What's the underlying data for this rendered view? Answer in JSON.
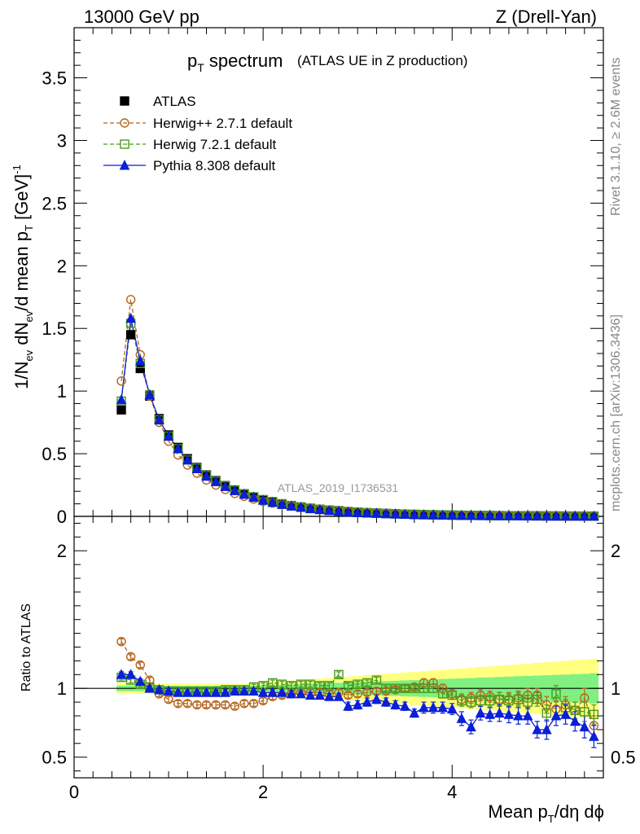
{
  "header": {
    "left": "13000 GeV pp",
    "right": "Z (Drell-Yan)"
  },
  "title": {
    "main": "p",
    "main_sub": "T",
    "main_rest": " spectrum",
    "subtitle": "(ATLAS UE in Z production)"
  },
  "side_labels": {
    "rivet": "Rivet 3.1.10, ≥ 2.6M events",
    "mcplots": "mcplots.cern.ch [arXiv:1306.3436]"
  },
  "watermark": "ATLAS_2019_I1736531",
  "axes": {
    "top_ylabel": "1/N_ev dN_ev/d mean p_T [GeV]^-1",
    "bottom_ylabel": "Ratio to ATLAS",
    "xlabel": "Mean p_T/dη dϕ"
  },
  "colors": {
    "atlas": "#000000",
    "herwigpp": "#b5651d",
    "herwig7": "#4a9a1c",
    "pythia": "#0a1fd6",
    "band_outer": "#ffff80",
    "band_inner": "#80f080"
  },
  "chart_data": [
    {
      "type": "scatter",
      "panel": "main",
      "xlim": [
        0,
        5.6
      ],
      "ylim": [
        0,
        3.9
      ],
      "x_ticks": [
        "0",
        "2",
        "4"
      ],
      "y_ticks": [
        "0",
        "0.5",
        "1",
        "1.5",
        "2",
        "2.5",
        "3",
        "3.5"
      ],
      "legend_placement": "top-left",
      "x": [
        0.5,
        0.6,
        0.7,
        0.8,
        0.9,
        1.0,
        1.1,
        1.2,
        1.3,
        1.4,
        1.5,
        1.6,
        1.7,
        1.8,
        1.9,
        2.0,
        2.1,
        2.2,
        2.3,
        2.4,
        2.5,
        2.6,
        2.7,
        2.8,
        2.9,
        3.0,
        3.1,
        3.2,
        3.3,
        3.4,
        3.5,
        3.6,
        3.7,
        3.8,
        3.9,
        4.0,
        4.1,
        4.2,
        4.3,
        4.4,
        4.5,
        4.6,
        4.7,
        4.8,
        4.9,
        5.0,
        5.1,
        5.2,
        5.3,
        5.4,
        5.5
      ],
      "series": [
        {
          "name": "ATLAS",
          "values": [
            0.85,
            1.45,
            1.18,
            0.96,
            0.78,
            0.65,
            0.55,
            0.46,
            0.39,
            0.33,
            0.285,
            0.245,
            0.21,
            0.18,
            0.155,
            0.132,
            0.114,
            0.098,
            0.085,
            0.074,
            0.064,
            0.056,
            0.049,
            0.043,
            0.038,
            0.033,
            0.029,
            0.026,
            0.023,
            0.02,
            0.018,
            0.016,
            0.014,
            0.0125,
            0.011,
            0.01,
            0.009,
            0.008,
            0.0072,
            0.0065,
            0.0058,
            0.0052,
            0.0047,
            0.0042,
            0.0038,
            0.0034,
            0.0031,
            0.0028,
            0.0025,
            0.0023,
            0.0021
          ]
        },
        {
          "name": "Herwig++ 2.7.1 default",
          "values": [
            1.08,
            1.73,
            1.29,
            0.96,
            0.75,
            0.6,
            0.49,
            0.41,
            0.345,
            0.29,
            0.25,
            0.215,
            0.183,
            0.16,
            0.138,
            0.12,
            0.106,
            0.093,
            0.082,
            0.072,
            0.062,
            0.054,
            0.047,
            0.042,
            0.036,
            0.032,
            0.028,
            0.025,
            0.022,
            0.019,
            0.017,
            0.015,
            0.013,
            0.012,
            0.0105,
            0.0095,
            0.0085,
            0.0075,
            0.0068,
            0.006,
            0.0055,
            0.005,
            0.0044,
            0.004,
            0.0036,
            0.0032,
            0.003,
            0.0027,
            0.0024,
            0.0021,
            0.0019
          ]
        },
        {
          "name": "Herwig 7.2.1 default",
          "values": [
            0.92,
            1.54,
            1.22,
            0.97,
            0.77,
            0.64,
            0.54,
            0.45,
            0.385,
            0.325,
            0.28,
            0.243,
            0.208,
            0.179,
            0.156,
            0.134,
            0.118,
            0.101,
            0.087,
            0.076,
            0.066,
            0.057,
            0.05,
            0.046,
            0.039,
            0.034,
            0.03,
            0.027,
            0.023,
            0.02,
            0.018,
            0.016,
            0.014,
            0.0125,
            0.011,
            0.0099,
            0.0089,
            0.0078,
            0.0069,
            0.0062,
            0.0055,
            0.005,
            0.0044,
            0.004,
            0.0035,
            0.0032,
            0.0029,
            0.0026,
            0.0023,
            0.0021,
            0.0017
          ]
        },
        {
          "name": "Pythia 8.308 default",
          "values": [
            0.93,
            1.58,
            1.24,
            0.97,
            0.77,
            0.64,
            0.54,
            0.45,
            0.38,
            0.32,
            0.277,
            0.238,
            0.205,
            0.176,
            0.152,
            0.128,
            0.111,
            0.095,
            0.082,
            0.071,
            0.061,
            0.053,
            0.046,
            0.04,
            0.033,
            0.029,
            0.026,
            0.024,
            0.021,
            0.018,
            0.016,
            0.013,
            0.012,
            0.011,
            0.0095,
            0.0085,
            0.007,
            0.0058,
            0.0059,
            0.0053,
            0.0048,
            0.0043,
            0.0037,
            0.0034,
            0.0026,
            0.0023,
            0.0024,
            0.0023,
            0.0019,
            0.0017,
            0.0014
          ]
        }
      ]
    },
    {
      "type": "scatter",
      "panel": "ratio",
      "xlim": [
        0,
        5.6
      ],
      "ylim": [
        0.35,
        2.25
      ],
      "x_ticks": [
        "0",
        "2",
        "4"
      ],
      "y_ticks": [
        "0.5",
        "1",
        "2"
      ],
      "reference_line": 1,
      "band_outer_halfwidth": [
        0.04,
        0.04,
        0.04,
        0.035,
        0.035,
        0.035,
        0.035,
        0.035,
        0.035,
        0.035,
        0.035,
        0.035,
        0.035,
        0.035,
        0.035,
        0.04,
        0.045,
        0.05,
        0.055,
        0.06,
        0.065,
        0.07,
        0.075,
        0.08,
        0.085,
        0.09,
        0.095,
        0.1,
        0.105,
        0.11,
        0.115,
        0.12,
        0.125,
        0.13,
        0.135,
        0.14,
        0.145,
        0.15,
        0.155,
        0.16,
        0.165,
        0.17,
        0.175,
        0.18,
        0.185,
        0.19,
        0.195,
        0.2,
        0.205,
        0.21,
        0.215
      ],
      "band_inner_halfwidth": [
        0.02,
        0.02,
        0.02,
        0.018,
        0.018,
        0.018,
        0.018,
        0.018,
        0.018,
        0.018,
        0.018,
        0.018,
        0.018,
        0.018,
        0.018,
        0.02,
        0.022,
        0.025,
        0.028,
        0.03,
        0.033,
        0.035,
        0.038,
        0.04,
        0.043,
        0.045,
        0.048,
        0.05,
        0.053,
        0.055,
        0.058,
        0.06,
        0.063,
        0.065,
        0.068,
        0.07,
        0.073,
        0.075,
        0.078,
        0.08,
        0.083,
        0.085,
        0.088,
        0.09,
        0.093,
        0.095,
        0.098,
        0.1,
        0.103,
        0.105,
        0.11
      ],
      "series": [
        {
          "name": "Herwig++ 2.7.1 default",
          "values": [
            1.34,
            1.23,
            1.17,
            1.06,
            0.96,
            0.92,
            0.89,
            0.89,
            0.88,
            0.88,
            0.88,
            0.88,
            0.87,
            0.89,
            0.89,
            0.91,
            0.94,
            0.95,
            0.96,
            0.97,
            0.97,
            0.97,
            0.96,
            0.97,
            0.95,
            0.96,
            0.97,
            0.98,
            0.98,
            0.99,
            1.0,
            1.01,
            1.04,
            1.04,
            1.0,
            0.96,
            0.92,
            0.93,
            0.95,
            0.94,
            0.92,
            0.92,
            0.93,
            0.95,
            0.95,
            0.88,
            0.85,
            0.88,
            0.84,
            0.93,
            0.73
          ],
          "errors": [
            0.02,
            0.02,
            0.02,
            0.02,
            0.02,
            0.02,
            0.02,
            0.02,
            0.02,
            0.02,
            0.02,
            0.02,
            0.02,
            0.02,
            0.02,
            0.02,
            0.02,
            0.02,
            0.02,
            0.02,
            0.02,
            0.02,
            0.02,
            0.02,
            0.02,
            0.02,
            0.02,
            0.02,
            0.02,
            0.02,
            0.02,
            0.02,
            0.03,
            0.03,
            0.03,
            0.03,
            0.04,
            0.04,
            0.04,
            0.04,
            0.05,
            0.05,
            0.05,
            0.05,
            0.05,
            0.06,
            0.06,
            0.06,
            0.06,
            0.07,
            0.07
          ]
        },
        {
          "name": "Herwig 7.2.1 default",
          "values": [
            1.08,
            1.06,
            1.03,
            1.01,
            0.99,
            0.98,
            0.98,
            0.98,
            0.98,
            0.98,
            0.98,
            0.99,
            0.99,
            0.99,
            1.01,
            1.02,
            1.04,
            1.03,
            1.02,
            1.03,
            1.03,
            1.02,
            1.02,
            1.1,
            1.02,
            1.03,
            1.04,
            1.06,
            1.0,
            1.0,
            1.0,
            1.0,
            1.0,
            1.0,
            0.96,
            0.95,
            0.91,
            0.9,
            0.91,
            0.91,
            0.92,
            0.91,
            0.92,
            0.9,
            0.92,
            0.82,
            0.96,
            0.86,
            0.84,
            0.83,
            0.81
          ],
          "errors": [
            0.02,
            0.02,
            0.02,
            0.02,
            0.02,
            0.02,
            0.02,
            0.02,
            0.02,
            0.02,
            0.02,
            0.02,
            0.02,
            0.02,
            0.02,
            0.02,
            0.02,
            0.02,
            0.02,
            0.02,
            0.02,
            0.02,
            0.02,
            0.02,
            0.02,
            0.02,
            0.02,
            0.02,
            0.02,
            0.02,
            0.02,
            0.02,
            0.03,
            0.03,
            0.03,
            0.03,
            0.04,
            0.04,
            0.04,
            0.04,
            0.05,
            0.05,
            0.05,
            0.05,
            0.05,
            0.06,
            0.06,
            0.06,
            0.06,
            0.07,
            0.07
          ]
        },
        {
          "name": "Pythia 8.308 default",
          "values": [
            1.1,
            1.1,
            1.05,
            1.0,
            0.99,
            0.98,
            0.97,
            0.97,
            0.97,
            0.97,
            0.97,
            0.97,
            0.98,
            0.98,
            0.98,
            0.97,
            0.97,
            0.97,
            0.96,
            0.96,
            0.95,
            0.95,
            0.94,
            0.94,
            0.87,
            0.88,
            0.9,
            0.92,
            0.9,
            0.88,
            0.87,
            0.82,
            0.86,
            0.86,
            0.86,
            0.85,
            0.78,
            0.72,
            0.82,
            0.81,
            0.82,
            0.81,
            0.8,
            0.8,
            0.7,
            0.7,
            0.8,
            0.81,
            0.76,
            0.72,
            0.65
          ],
          "errors": [
            0.02,
            0.02,
            0.02,
            0.02,
            0.02,
            0.02,
            0.02,
            0.02,
            0.02,
            0.02,
            0.02,
            0.02,
            0.02,
            0.02,
            0.02,
            0.02,
            0.02,
            0.02,
            0.02,
            0.02,
            0.02,
            0.02,
            0.02,
            0.02,
            0.03,
            0.03,
            0.03,
            0.03,
            0.03,
            0.03,
            0.03,
            0.03,
            0.04,
            0.04,
            0.04,
            0.04,
            0.05,
            0.05,
            0.05,
            0.05,
            0.06,
            0.06,
            0.06,
            0.06,
            0.06,
            0.07,
            0.07,
            0.07,
            0.07,
            0.08,
            0.08
          ]
        }
      ]
    }
  ]
}
